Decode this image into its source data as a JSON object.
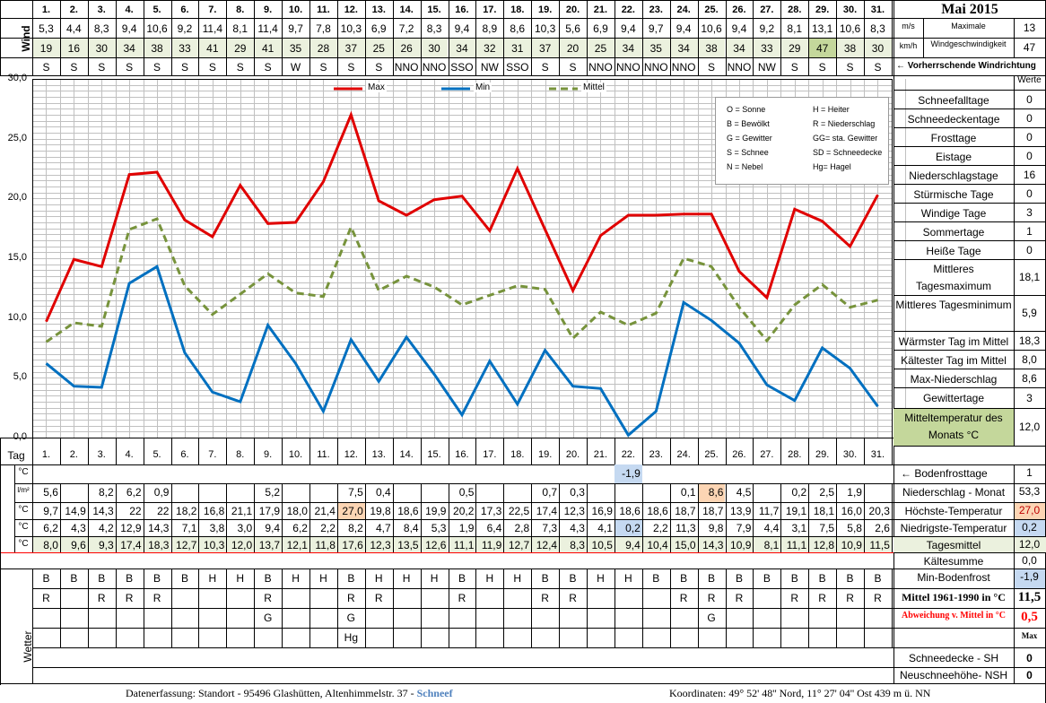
{
  "colors": {
    "max": "#e00000",
    "min": "#0070c0",
    "mittel": "#77933c",
    "row_mittel_bg": "#ebf1de",
    "wind_kmh_bg": "#ebf1de",
    "highlight_orange": "#fcd5b4",
    "highlight_blue": "#c5d9f1",
    "highlight_green": "#c4d79b",
    "header_red": "#ff0000"
  },
  "header": {
    "title": "Mai 2015",
    "wind_label": "Wind",
    "unit_ms": "m/s",
    "unit_kmh": "km/h",
    "max_wind_label1": "Maximale",
    "max_wind_label2": "Windgeschwindigkeit",
    "max_wind_ms": "13",
    "max_wind_kmh": "47",
    "dir_label": "← Vorherrschende Windrichtung"
  },
  "days": [
    "1.",
    "2.",
    "3.",
    "4.",
    "5.",
    "6.",
    "7.",
    "8.",
    "9.",
    "10.",
    "11.",
    "12.",
    "13.",
    "14.",
    "15.",
    "16.",
    "17.",
    "18.",
    "19.",
    "20.",
    "21.",
    "22.",
    "23.",
    "24.",
    "25.",
    "26.",
    "27.",
    "28.",
    "29.",
    "30.",
    "31."
  ],
  "wind_ms": [
    "5,3",
    "4,4",
    "8,3",
    "9,4",
    "10,6",
    "9,2",
    "11,4",
    "8,1",
    "11,4",
    "9,7",
    "7,8",
    "10,3",
    "6,9",
    "7,2",
    "8,3",
    "9,4",
    "8,9",
    "8,6",
    "10,3",
    "5,6",
    "6,9",
    "9,4",
    "9,7",
    "9,4",
    "10,6",
    "9,4",
    "9,2",
    "8,1",
    "13,1",
    "10,6",
    "8,3"
  ],
  "wind_kmh": [
    "19",
    "16",
    "30",
    "34",
    "38",
    "33",
    "41",
    "29",
    "41",
    "35",
    "28",
    "37",
    "25",
    "26",
    "30",
    "34",
    "32",
    "31",
    "37",
    "20",
    "25",
    "34",
    "35",
    "34",
    "38",
    "34",
    "33",
    "29",
    "47",
    "38",
    "30"
  ],
  "wind_dir": [
    "S",
    "S",
    "S",
    "S",
    "S",
    "S",
    "S",
    "S",
    "S",
    "W",
    "S",
    "S",
    "S",
    "NNO",
    "NNO",
    "SSO",
    "NW",
    "SSO",
    "S",
    "S",
    "NNO",
    "NNO",
    "NNO",
    "NNO",
    "S",
    "NNO",
    "NW",
    "S",
    "S",
    "S",
    "S"
  ],
  "chart_data": {
    "type": "line",
    "x": [
      "1.",
      "2.",
      "3.",
      "4.",
      "5.",
      "6.",
      "7.",
      "8.",
      "9.",
      "10.",
      "11.",
      "12.",
      "13.",
      "14.",
      "15.",
      "16.",
      "17.",
      "18.",
      "19.",
      "20.",
      "21.",
      "22.",
      "23.",
      "24.",
      "25.",
      "26.",
      "27.",
      "28.",
      "29.",
      "30.",
      "31."
    ],
    "ylim": [
      0,
      30
    ],
    "yticks": [
      "0,0",
      "5,0",
      "10,0",
      "15,0",
      "20,0",
      "25,0",
      "30,0"
    ],
    "legend_placement": "top",
    "series": [
      {
        "name": "Max",
        "style": "solid",
        "values": [
          9.7,
          14.9,
          14.3,
          22,
          22.2,
          18.2,
          16.8,
          21.1,
          17.9,
          18,
          21.4,
          27,
          19.8,
          18.6,
          19.9,
          20.2,
          17.3,
          22.5,
          17.4,
          12.3,
          16.9,
          18.6,
          18.6,
          18.7,
          18.7,
          13.9,
          11.7,
          19.1,
          18.1,
          16,
          20.3
        ]
      },
      {
        "name": "Min",
        "style": "solid",
        "values": [
          6.2,
          4.3,
          4.2,
          12.9,
          14.3,
          7.1,
          3.8,
          3,
          9.4,
          6.2,
          2.2,
          8.2,
          4.7,
          8.4,
          5.3,
          1.9,
          6.4,
          2.8,
          7.3,
          4.3,
          4.1,
          0.2,
          2.2,
          11.3,
          9.8,
          7.9,
          4.4,
          3.1,
          7.5,
          5.8,
          2.6
        ]
      },
      {
        "name": "Mittel",
        "style": "dashed",
        "values": [
          8,
          9.6,
          9.3,
          17.4,
          18.3,
          12.7,
          10.3,
          12,
          13.7,
          12.1,
          11.8,
          17.6,
          12.3,
          13.5,
          12.6,
          11.1,
          11.9,
          12.7,
          12.4,
          8.3,
          10.5,
          9.4,
          10.4,
          15,
          14.3,
          10.9,
          8.1,
          11.1,
          12.8,
          10.9,
          11.5
        ]
      }
    ]
  },
  "chart_key": [
    [
      "O = Sonne",
      "H = Heiter"
    ],
    [
      "B = Bewölkt",
      "R = Niederschlag"
    ],
    [
      "G = Gewitter",
      "GG= sta. Gewitter"
    ],
    [
      "S = Schnee",
      "SD = Schneedecke"
    ],
    [
      "N = Nebel",
      "Hg= Hagel"
    ]
  ],
  "tag_label": "Tag",
  "row_labels": {
    "frost": "°C",
    "precip": "l/m²",
    "max": "°C",
    "min": "°C",
    "mittel": "°C",
    "wetter": "Wetter"
  },
  "bodenfrost": [
    "",
    "",
    "",
    "",
    "",
    "",
    "",
    "",
    "",
    "",
    "",
    "",
    "",
    "",
    "",
    "",
    "",
    "",
    "",
    "",
    "",
    "-1,9",
    "",
    "",
    "",
    "",
    "",
    "",
    "",
    "",
    ""
  ],
  "precip": [
    "5,6",
    "",
    "8,2",
    "6,2",
    "0,9",
    "",
    "",
    "",
    "5,2",
    "",
    "",
    "7,5",
    "0,4",
    "",
    "",
    "0,5",
    "",
    "",
    "0,7",
    "0,3",
    "",
    "",
    "",
    "0,1",
    "8,6",
    "4,5",
    "",
    "0,2",
    "2,5",
    "1,9",
    ""
  ],
  "tmax": [
    "9,7",
    "14,9",
    "14,3",
    "22",
    "22",
    "18,2",
    "16,8",
    "21,1",
    "17,9",
    "18,0",
    "21,4",
    "27,0",
    "19,8",
    "18,6",
    "19,9",
    "20,2",
    "17,3",
    "22,5",
    "17,4",
    "12,3",
    "16,9",
    "18,6",
    "18,6",
    "18,7",
    "18,7",
    "13,9",
    "11,7",
    "19,1",
    "18,1",
    "16,0",
    "20,3"
  ],
  "tmin": [
    "6,2",
    "4,3",
    "4,2",
    "12,9",
    "14,3",
    "7,1",
    "3,8",
    "3,0",
    "9,4",
    "6,2",
    "2,2",
    "8,2",
    "4,7",
    "8,4",
    "5,3",
    "1,9",
    "6,4",
    "2,8",
    "7,3",
    "4,3",
    "4,1",
    "0,2",
    "2,2",
    "11,3",
    "9,8",
    "7,9",
    "4,4",
    "3,1",
    "7,5",
    "5,8",
    "2,6"
  ],
  "tmittel": [
    "8,0",
    "9,6",
    "9,3",
    "17,4",
    "18,3",
    "12,7",
    "10,3",
    "12,0",
    "13,7",
    "12,1",
    "11,8",
    "17,6",
    "12,3",
    "13,5",
    "12,6",
    "11,1",
    "11,9",
    "12,7",
    "12,4",
    "8,3",
    "10,5",
    "9,4",
    "10,4",
    "15,0",
    "14,3",
    "10,9",
    "8,1",
    "11,1",
    "12,8",
    "10,9",
    "11,5"
  ],
  "weather1": [
    "B",
    "B",
    "B",
    "B",
    "B",
    "B",
    "H",
    "H",
    "B",
    "H",
    "H",
    "B",
    "H",
    "H",
    "H",
    "B",
    "H",
    "H",
    "B",
    "B",
    "H",
    "H",
    "B",
    "B",
    "B",
    "B",
    "B",
    "B",
    "B",
    "B",
    "B"
  ],
  "weather2": [
    "R",
    "",
    "R",
    "R",
    "R",
    "",
    "",
    "",
    "R",
    "",
    "",
    "R",
    "R",
    "",
    "",
    "R",
    "",
    "",
    "R",
    "R",
    "",
    "",
    "",
    "R",
    "R",
    "R",
    "",
    "R",
    "R",
    "R",
    "R"
  ],
  "weather3": [
    "",
    "",
    "",
    "",
    "",
    "",
    "",
    "",
    "G",
    "",
    "",
    "G",
    "",
    "",
    "",
    "",
    "",
    "",
    "",
    "",
    "",
    "",
    "",
    "",
    "G",
    "",
    "",
    "",
    "",
    "",
    ""
  ],
  "weather4": [
    "",
    "",
    "",
    "",
    "",
    "",
    "",
    "",
    "",
    "",
    "",
    "Hg",
    "",
    "",
    "",
    "",
    "",
    "",
    "",
    "",
    "",
    "",
    "",
    "",
    "",
    "",
    "",
    "",
    "",
    "",
    ""
  ],
  "stats": {
    "werte": "Werte",
    "items": [
      {
        "label": "Schneefalltage",
        "value": "0"
      },
      {
        "label": "Schneedeckentage",
        "value": "0"
      },
      {
        "label": "Frosttage",
        "value": "0"
      },
      {
        "label": "Eistage",
        "value": "0"
      },
      {
        "label": "Niederschlagstage",
        "value": "16"
      },
      {
        "label": "Stürmische Tage",
        "value": "0"
      },
      {
        "label": "Windige Tage",
        "value": "3"
      },
      {
        "label": "Sommertage",
        "value": "1"
      },
      {
        "label": "Heiße Tage",
        "value": "0"
      },
      {
        "label": "Mittleres Tagesmaximum",
        "value": "18,1"
      },
      {
        "label": "Mittleres Tagesminimum",
        "value": "5,9"
      },
      {
        "label": "Wärmster Tag im Mittel",
        "value": "18,3"
      },
      {
        "label": "Kältester Tag im Mittel",
        "value": "8,0"
      },
      {
        "label": "Max-Niederschlag",
        "value": "8,6"
      },
      {
        "label": "Gewittertage",
        "value": "3"
      },
      {
        "label": "Mitteltemperatur des Monats °C",
        "value": "12,0"
      }
    ]
  },
  "lower_stats": {
    "bodenfrosttage_label": "← Bodenfrosttage",
    "bodenfrosttage": "1",
    "niederschlag_label": "Niederschlag - Monat",
    "niederschlag": "53,3",
    "hoechst_label": "Höchste-Temperatur",
    "hoechst": "27,0",
    "niedrigst_label": "Niedrigste-Temperatur",
    "niedrigst": "0,2",
    "tagesmittel_label": "Tagesmittel",
    "tagesmittel": "12,0",
    "kaeltesumme_label": "Kältesumme",
    "kaeltesumme": "0,0",
    "minboden_label": "Min-Bodenfrost",
    "minboden": "-1,9",
    "mittel1961_label": "Mittel 1961-1990 in °C",
    "mittel1961": "11,5",
    "abweichung_label": "Abweichung v. Mittel in °C",
    "abweichung": "0,5",
    "max_label": "Max",
    "schneedecke_label": "Schneedecke -  SH",
    "schneedecke": "0",
    "neuschnee_label": "Neuschneehöhe- NSH",
    "neuschnee": "0"
  },
  "footer": {
    "left": "Datenerfassung:  Standort -  95496  Glashütten, Altenhimmelstr. 37 - ",
    "left_accent": "Schneef",
    "right": "Koordinaten:  49° 52' 48'' Nord,   11° 27' 04'' Ost   439 m ü. NN"
  }
}
